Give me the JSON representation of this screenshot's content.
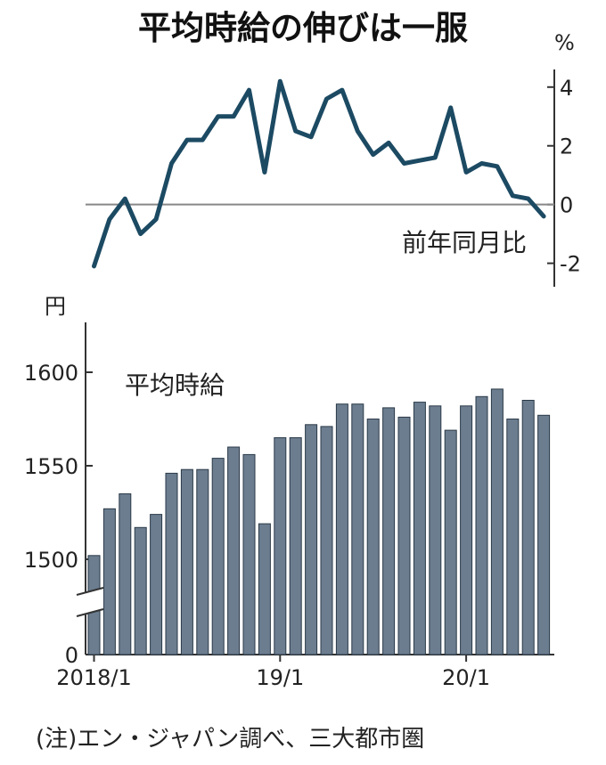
{
  "chart_data": [
    {
      "type": "line",
      "title": "平均時給の伸びは一服",
      "unit_label": "%",
      "series_label": "前年同月比",
      "ylim": [
        -2.8,
        4.6
      ],
      "yticks": [
        4,
        2,
        0,
        -2
      ],
      "ytick_labels": [
        "4",
        "2",
        "0",
        "-2"
      ],
      "values": [
        -2.1,
        -0.5,
        0.2,
        -1.0,
        -0.5,
        1.4,
        2.2,
        2.2,
        3.0,
        3.0,
        3.9,
        1.1,
        4.2,
        2.5,
        2.3,
        3.6,
        3.9,
        2.5,
        1.7,
        2.1,
        1.4,
        1.5,
        1.6,
        3.3,
        1.1,
        1.4,
        1.3,
        0.3,
        0.2,
        -0.4
      ],
      "grid": false
    },
    {
      "type": "bar",
      "title": "平均時給",
      "unit_label": "円",
      "ylim": [
        1450,
        1625
      ],
      "yticks": [
        1600,
        1550,
        1500
      ],
      "ytick_labels": [
        "1600",
        "1550",
        "1500"
      ],
      "baseline_label": "0",
      "axis_break": true,
      "categories": [
        "2018/1",
        "2018/2",
        "2018/3",
        "2018/4",
        "2018/5",
        "2018/6",
        "2018/7",
        "2018/8",
        "2018/9",
        "2018/10",
        "2018/11",
        "2018/12",
        "2019/1",
        "2019/2",
        "2019/3",
        "2019/4",
        "2019/5",
        "2019/6",
        "2019/7",
        "2019/8",
        "2019/9",
        "2019/10",
        "2019/11",
        "2019/12",
        "2020/1",
        "2020/2",
        "2020/3",
        "2020/4",
        "2020/5",
        "2020/6"
      ],
      "xtick_labels": [
        {
          "index": 0,
          "label": "2018/1"
        },
        {
          "index": 12,
          "label": "19/1"
        },
        {
          "index": 24,
          "label": "20/1"
        }
      ],
      "values": [
        1502,
        1527,
        1535,
        1517,
        1524,
        1546,
        1548,
        1548,
        1554,
        1560,
        1556,
        1519,
        1565,
        1565,
        1572,
        1571,
        1583,
        1583,
        1575,
        1581,
        1576,
        1584,
        1582,
        1569,
        1582,
        1587,
        1591,
        1575,
        1585,
        1577
      ],
      "bar_color": "#6b7d8f",
      "grid": false
    }
  ],
  "footnote": "(注)エン・ジャパン調べ、三大都市圏",
  "colors": {
    "line": "#1c4a63",
    "bar": "#6b7d8f",
    "axis": "#333333",
    "zero_line": "#888888"
  }
}
